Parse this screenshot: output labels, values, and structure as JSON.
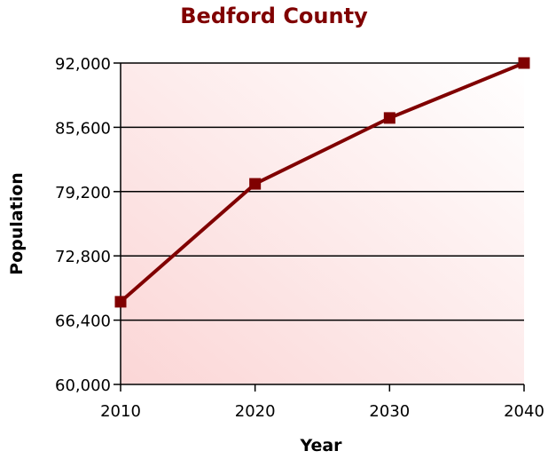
{
  "chart_data": {
    "type": "line",
    "title": "Bedford County",
    "xlabel": "Year",
    "ylabel": "Population",
    "categories": [
      "2010",
      "2020",
      "2030",
      "2040"
    ],
    "series": [
      {
        "values": [
          68230,
          79970,
          86530,
          92000
        ]
      }
    ],
    "y_ticks": [
      "60,000",
      "66,400",
      "72,800",
      "79,200",
      "85,600",
      "92,000"
    ],
    "ylim": [
      60000,
      92000
    ],
    "grid": true,
    "legend": "none",
    "colors": {
      "title": "#800000",
      "line": "#800000",
      "marker": "#800000",
      "plot_gradient_light": "#ffffff",
      "plot_gradient_dark": "#fbd6d6"
    }
  }
}
